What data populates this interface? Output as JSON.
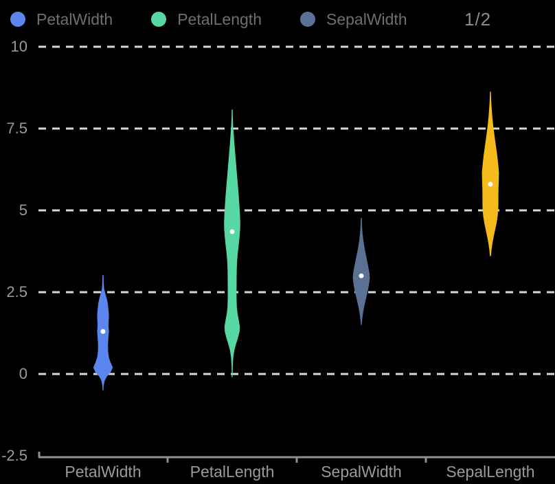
{
  "legend": {
    "items": [
      {
        "label": "PetalWidth",
        "color": "#5b86ef"
      },
      {
        "label": "PetalLength",
        "color": "#57d7a4"
      },
      {
        "label": "SepalWidth",
        "color": "#5a7195"
      }
    ],
    "page_indicator": "1/2"
  },
  "canvas": {
    "background": "#000000",
    "gridline_color": "#d8d8d8",
    "axis_color": "#919191",
    "tick_label_color": "#9a9a9a",
    "legend_text_color": "#6c6f74",
    "page_indicator_color": "#8d8d8d",
    "median_dot_color": "#ffffff"
  },
  "chart_data": {
    "type": "violin",
    "title": "",
    "xlabel": "",
    "ylabel": "",
    "legend_position": "top",
    "grid": "horizontal-dashed",
    "ylim": [
      -2.5,
      10
    ],
    "y_axis": {
      "tick_labels": [
        "10",
        "7.5",
        "5",
        "2.5",
        "0",
        "-2.5"
      ],
      "tick_values": [
        10,
        7.5,
        5,
        2.5,
        0,
        -2.5
      ],
      "gridline_values": [
        10,
        7.5,
        5,
        2.5,
        0
      ]
    },
    "categories": [
      "PetalWidth",
      "PetalLength",
      "SepalWidth",
      "SepalLength"
    ],
    "series": [
      {
        "label": "PetalWidth",
        "color": "#5b86ef",
        "median": 1.3,
        "kde_min": -0.5,
        "kde_max": 3.0,
        "profile": [
          [
            3.02,
            0.8
          ],
          [
            2.8,
            1
          ],
          [
            2.6,
            1.6
          ],
          [
            2.45,
            3.5
          ],
          [
            2.3,
            5.5
          ],
          [
            2.15,
            7
          ],
          [
            1.95,
            8
          ],
          [
            1.8,
            8.6
          ],
          [
            1.6,
            8.2
          ],
          [
            1.45,
            8
          ],
          [
            1.3,
            8.6
          ],
          [
            1.1,
            7.8
          ],
          [
            0.9,
            7.2
          ],
          [
            0.7,
            7.4
          ],
          [
            0.5,
            8.6
          ],
          [
            0.35,
            11
          ],
          [
            0.2,
            14.2
          ],
          [
            0.05,
            11
          ],
          [
            -0.08,
            5.5
          ],
          [
            -0.2,
            2.5
          ],
          [
            -0.35,
            1
          ],
          [
            -0.5,
            0.6
          ]
        ]
      },
      {
        "label": "PetalLength",
        "color": "#57d7a4",
        "median": 4.35,
        "kde_min": -0.1,
        "kde_max": 8.1,
        "profile": [
          [
            8.08,
            0.7
          ],
          [
            7.85,
            0.9
          ],
          [
            7.6,
            1.4
          ],
          [
            7.3,
            2.4
          ],
          [
            7.0,
            3.4
          ],
          [
            6.7,
            4.6
          ],
          [
            6.4,
            5.8
          ],
          [
            6.1,
            7
          ],
          [
            5.8,
            8.2
          ],
          [
            5.5,
            9.4
          ],
          [
            5.2,
            10.4
          ],
          [
            4.9,
            11.3
          ],
          [
            4.65,
            11.8
          ],
          [
            4.45,
            11.7
          ],
          [
            4.2,
            10.8
          ],
          [
            3.95,
            9.6
          ],
          [
            3.7,
            8.2
          ],
          [
            3.45,
            7.2
          ],
          [
            3.2,
            6.7
          ],
          [
            2.9,
            6.5
          ],
          [
            2.6,
            6.4
          ],
          [
            2.3,
            6.4
          ],
          [
            2.05,
            6.8
          ],
          [
            1.85,
            7.8
          ],
          [
            1.65,
            9.6
          ],
          [
            1.45,
            11.2
          ],
          [
            1.3,
            10.8
          ],
          [
            1.1,
            8.4
          ],
          [
            0.9,
            5.4
          ],
          [
            0.7,
            3
          ],
          [
            0.5,
            1.6
          ],
          [
            0.25,
            0.9
          ],
          [
            -0.1,
            0.6
          ]
        ]
      },
      {
        "label": "SepalWidth",
        "color": "#5a7195",
        "median": 3.0,
        "kde_min": 1.5,
        "kde_max": 4.8,
        "profile": [
          [
            4.77,
            0.7
          ],
          [
            4.55,
            1
          ],
          [
            4.3,
            1.8
          ],
          [
            4.05,
            3.2
          ],
          [
            3.8,
            5.2
          ],
          [
            3.55,
            7.6
          ],
          [
            3.3,
            10
          ],
          [
            3.1,
            11.8
          ],
          [
            2.95,
            12.4
          ],
          [
            2.75,
            11.4
          ],
          [
            2.55,
            9.6
          ],
          [
            2.35,
            7.4
          ],
          [
            2.15,
            5.2
          ],
          [
            1.95,
            3.2
          ],
          [
            1.75,
            1.8
          ],
          [
            1.6,
            1
          ],
          [
            1.5,
            0.7
          ]
        ]
      },
      {
        "label": "SepalLength",
        "color": "#f4bb1b",
        "median": 5.8,
        "kde_min": 3.6,
        "kde_max": 8.6,
        "profile": [
          [
            8.63,
            0.7
          ],
          [
            8.4,
            1
          ],
          [
            8.15,
            1.7
          ],
          [
            7.9,
            2.6
          ],
          [
            7.6,
            4
          ],
          [
            7.3,
            5.8
          ],
          [
            7.0,
            7.8
          ],
          [
            6.7,
            9.8
          ],
          [
            6.4,
            11.4
          ],
          [
            6.15,
            12.4
          ],
          [
            5.95,
            12.2
          ],
          [
            5.7,
            11.8
          ],
          [
            5.45,
            11.6
          ],
          [
            5.2,
            11.6
          ],
          [
            5.0,
            11.4
          ],
          [
            4.8,
            10.4
          ],
          [
            4.6,
            8.8
          ],
          [
            4.4,
            6.8
          ],
          [
            4.2,
            4.8
          ],
          [
            4.0,
            3
          ],
          [
            3.8,
            1.6
          ],
          [
            3.6,
            0.7
          ]
        ]
      }
    ]
  }
}
